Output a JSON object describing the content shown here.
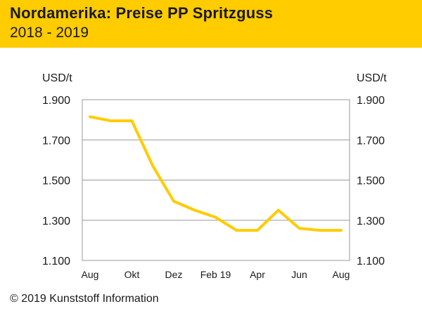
{
  "header": {
    "title": "Nordamerika: Preise PP Spritzguss",
    "subtitle": "2018 - 2019"
  },
  "footer": {
    "copyright": "© 2019 Kunststoff Information"
  },
  "colors": {
    "header_bg": "#ffcc00",
    "line": "#ffcc00",
    "grid": "#999999",
    "text": "#1a1a1a"
  },
  "chart_data": {
    "type": "line",
    "title": "",
    "ylabel_left": "USD/t",
    "ylabel_right": "USD/t",
    "ylim": [
      1100,
      1900
    ],
    "yticks": [
      1100,
      1300,
      1500,
      1700,
      1900
    ],
    "ytick_labels": [
      "1.100",
      "1.300",
      "1.500",
      "1.700",
      "1.900"
    ],
    "x_tick_labels": [
      "Aug",
      "Okt",
      "Dez",
      "Feb 19",
      "Apr",
      "Jun",
      "Aug"
    ],
    "x": [
      "2018-08",
      "2018-09",
      "2018-10",
      "2018-11",
      "2018-12",
      "2019-01",
      "2019-02",
      "2019-03",
      "2019-04",
      "2019-05",
      "2019-06",
      "2019-07",
      "2019-08"
    ],
    "series": [
      {
        "values": [
          1815,
          1795,
          1795,
          1570,
          1395,
          1350,
          1315,
          1250,
          1250,
          1350,
          1260,
          1250,
          1250
        ]
      }
    ],
    "grid": true,
    "legend": "none"
  }
}
